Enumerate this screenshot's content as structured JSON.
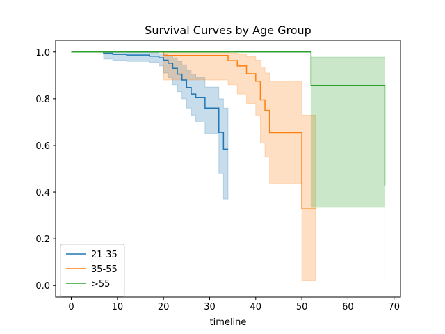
{
  "chart_data": {
    "type": "line",
    "title": "Survival Curves by Age Group",
    "xlabel": "timeline",
    "ylabel": "",
    "xlim": [
      -3.4,
      71.4
    ],
    "ylim": [
      -0.05,
      1.05
    ],
    "xticks": [
      0,
      10,
      20,
      30,
      40,
      50,
      60,
      70
    ],
    "yticks": [
      0.0,
      0.2,
      0.4,
      0.6,
      0.8,
      1.0
    ],
    "grid": false,
    "legend": "lower-left",
    "series": [
      {
        "name": "21-35",
        "color": "#1f77b4",
        "steps": [
          [
            0,
            1.0
          ],
          [
            7,
            0.995
          ],
          [
            9,
            0.99
          ],
          [
            12,
            0.987
          ],
          [
            17,
            0.982
          ],
          [
            19,
            0.975
          ],
          [
            20,
            0.965
          ],
          [
            21,
            0.952
          ],
          [
            22,
            0.93
          ],
          [
            23,
            0.905
          ],
          [
            24,
            0.88
          ],
          [
            25,
            0.848
          ],
          [
            26,
            0.82
          ],
          [
            27,
            0.805
          ],
          [
            29,
            0.76
          ],
          [
            32,
            0.656
          ],
          [
            33,
            0.584
          ],
          [
            34,
            0.584
          ]
        ],
        "ci_lower": [
          [
            0,
            1.0
          ],
          [
            7,
            0.97
          ],
          [
            9,
            0.965
          ],
          [
            12,
            0.96
          ],
          [
            17,
            0.955
          ],
          [
            19,
            0.94
          ],
          [
            20,
            0.91
          ],
          [
            21,
            0.89
          ],
          [
            22,
            0.86
          ],
          [
            23,
            0.83
          ],
          [
            24,
            0.8
          ],
          [
            25,
            0.76
          ],
          [
            26,
            0.73
          ],
          [
            27,
            0.7
          ],
          [
            29,
            0.65
          ],
          [
            32,
            0.48
          ],
          [
            33,
            0.37
          ],
          [
            34,
            0.37
          ]
        ],
        "ci_upper": [
          [
            0,
            1.0
          ],
          [
            7,
            1.0
          ],
          [
            9,
            1.0
          ],
          [
            12,
            0.999
          ],
          [
            17,
            0.997
          ],
          [
            19,
            0.993
          ],
          [
            20,
            0.99
          ],
          [
            21,
            0.985
          ],
          [
            22,
            0.975
          ],
          [
            23,
            0.96
          ],
          [
            24,
            0.945
          ],
          [
            25,
            0.92
          ],
          [
            26,
            0.905
          ],
          [
            27,
            0.89
          ],
          [
            29,
            0.85
          ],
          [
            32,
            0.8
          ],
          [
            33,
            0.76
          ],
          [
            34,
            0.76
          ]
        ]
      },
      {
        "name": "35-55",
        "color": "#ff7f0e",
        "steps": [
          [
            0,
            1.0
          ],
          [
            20,
            0.985
          ],
          [
            34,
            0.963
          ],
          [
            36,
            0.94
          ],
          [
            38,
            0.907
          ],
          [
            40,
            0.875
          ],
          [
            41,
            0.795
          ],
          [
            42,
            0.75
          ],
          [
            43,
            0.655
          ],
          [
            50,
            0.328
          ],
          [
            53,
            0.328
          ]
        ],
        "ci_lower": [
          [
            0,
            1.0
          ],
          [
            20,
            0.88
          ],
          [
            34,
            0.86
          ],
          [
            36,
            0.82
          ],
          [
            38,
            0.78
          ],
          [
            40,
            0.73
          ],
          [
            41,
            0.61
          ],
          [
            42,
            0.55
          ],
          [
            43,
            0.435
          ],
          [
            50,
            0.02
          ],
          [
            53,
            0.02
          ]
        ],
        "ci_upper": [
          [
            0,
            1.0
          ],
          [
            20,
            1.0
          ],
          [
            34,
            0.995
          ],
          [
            36,
            0.99
          ],
          [
            38,
            0.98
          ],
          [
            40,
            0.965
          ],
          [
            41,
            0.935
          ],
          [
            42,
            0.91
          ],
          [
            43,
            0.875
          ],
          [
            50,
            0.73
          ],
          [
            53,
            0.73
          ]
        ]
      },
      {
        "name": ">55",
        "color": "#2ca02c",
        "steps": [
          [
            0,
            1.0
          ],
          [
            52,
            0.857
          ],
          [
            68,
            0.428
          ]
        ],
        "ci_lower": [
          [
            0,
            1.0
          ],
          [
            52,
            0.335
          ],
          [
            68,
            0.012
          ]
        ],
        "ci_upper": [
          [
            0,
            1.0
          ],
          [
            52,
            0.978
          ],
          [
            68,
            0.978
          ]
        ]
      }
    ]
  }
}
